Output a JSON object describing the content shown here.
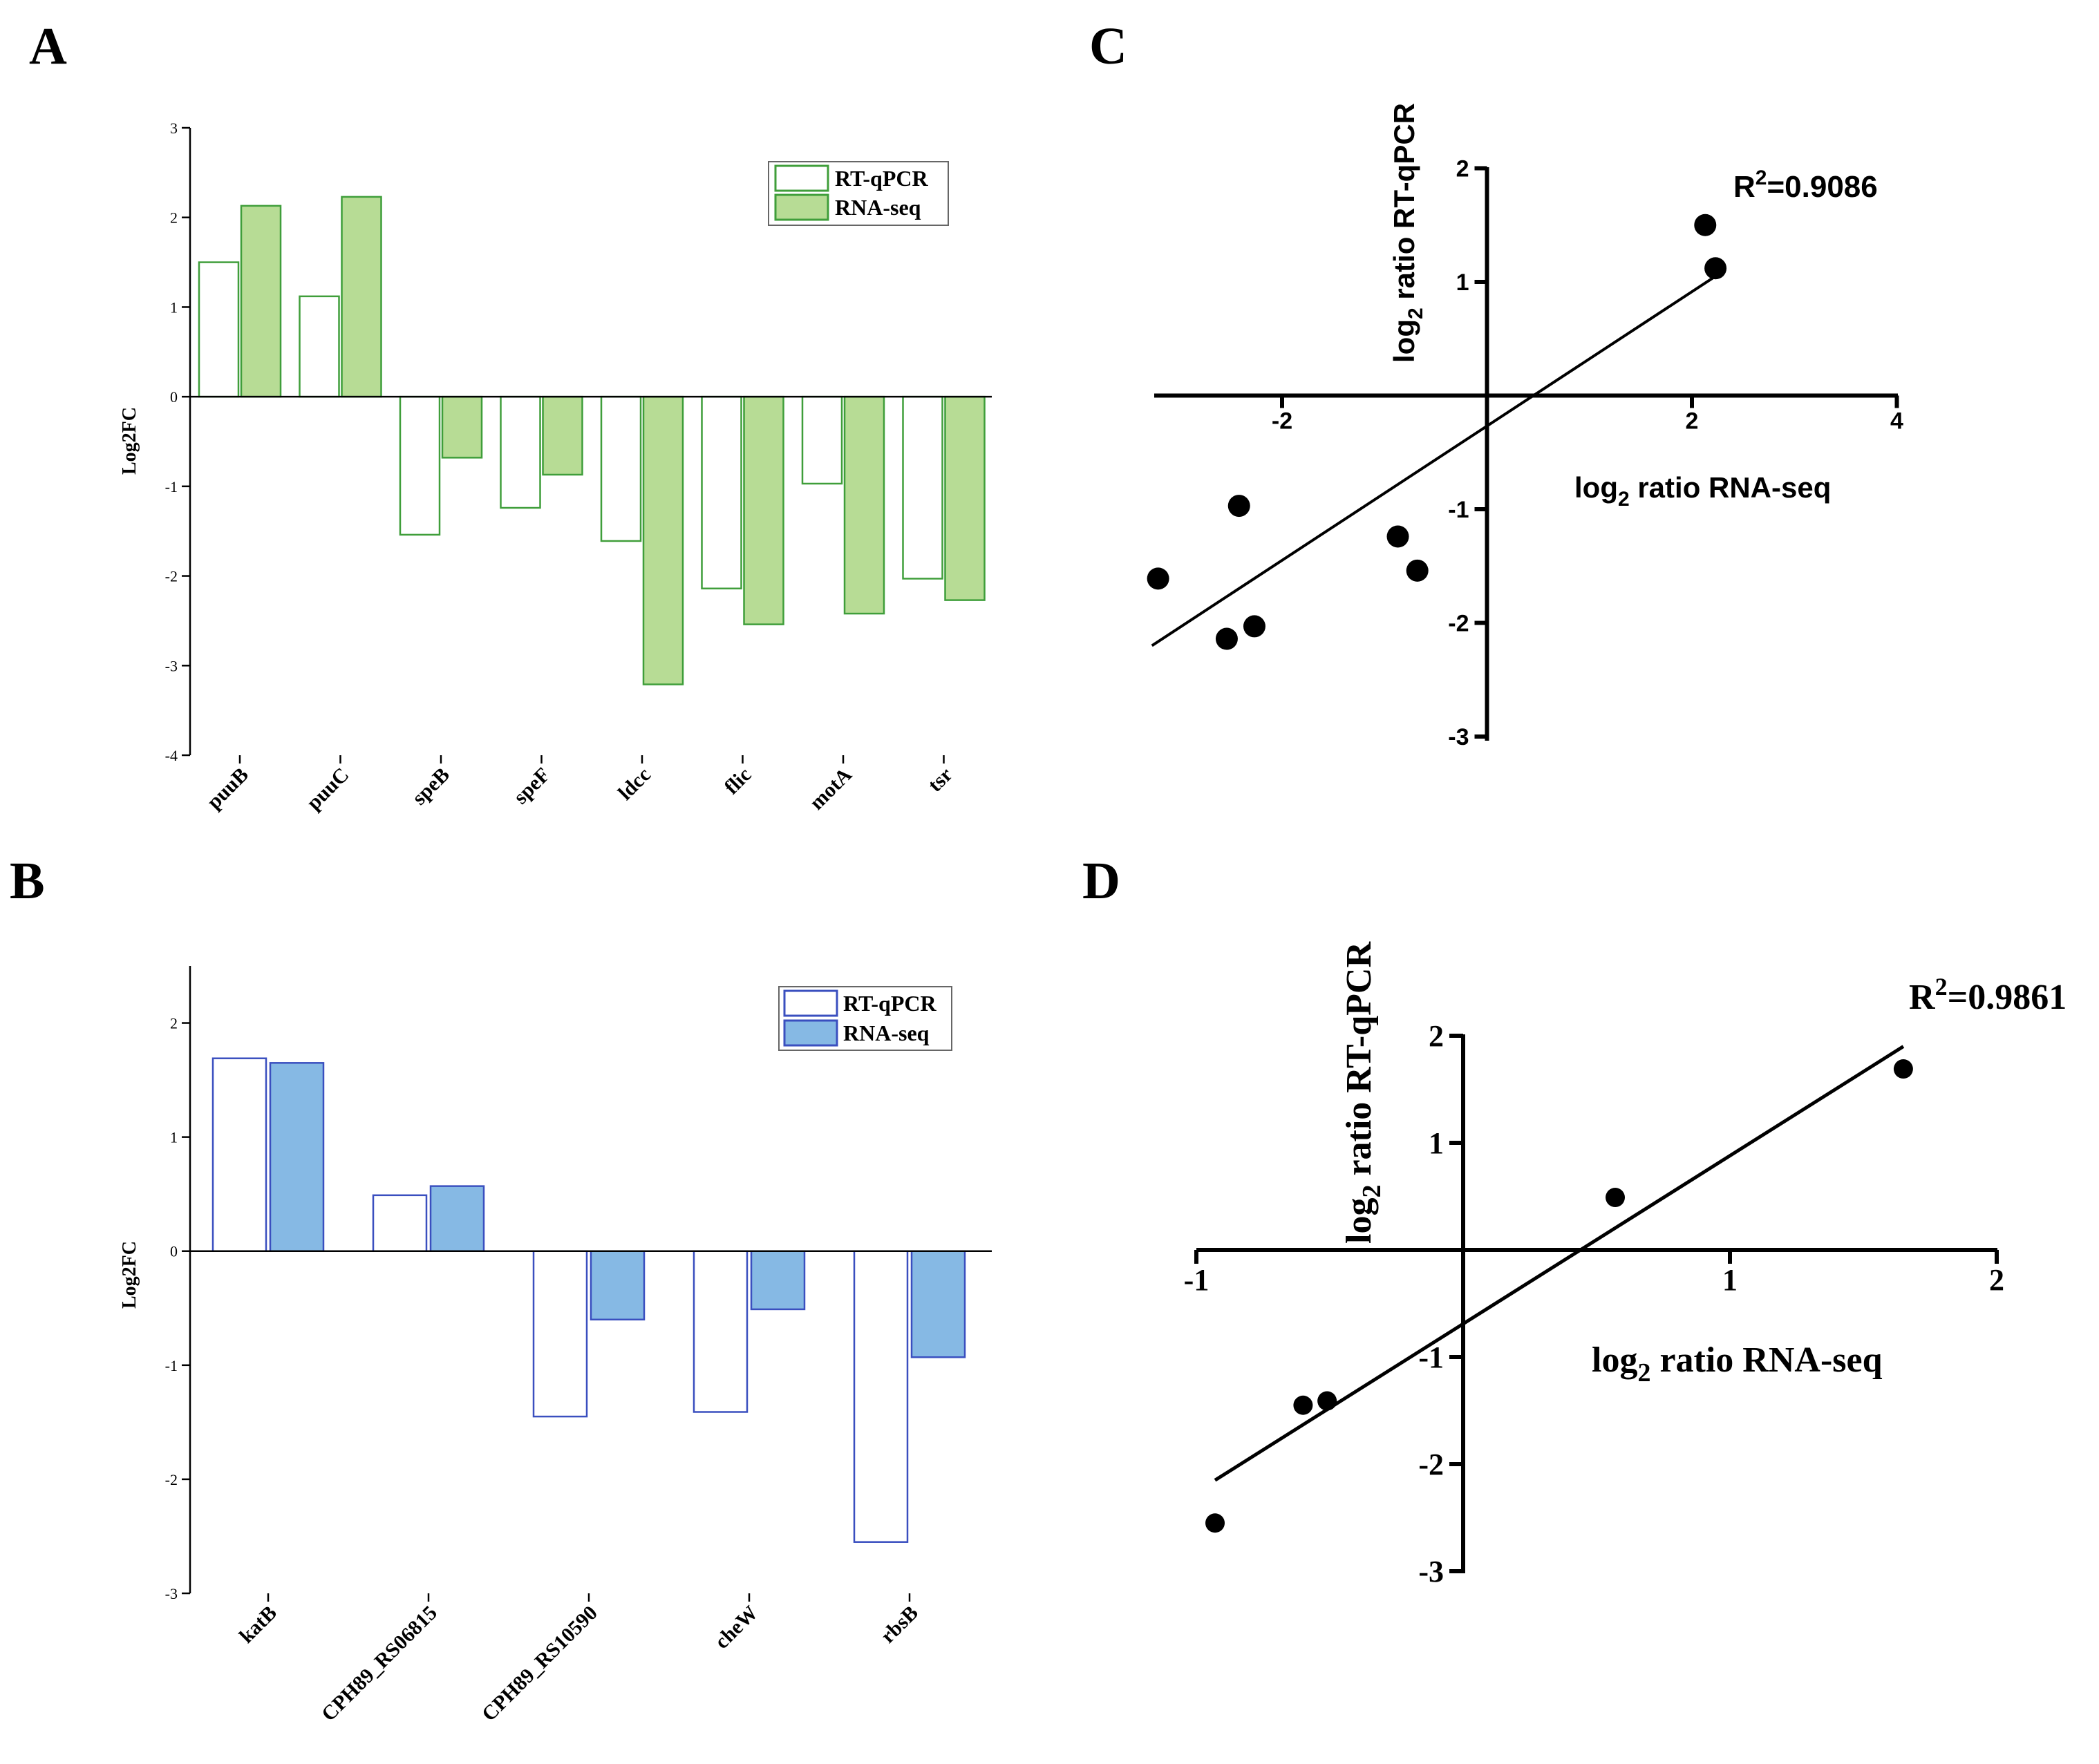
{
  "panels": {
    "A": "A",
    "B": "B",
    "C": "C",
    "D": "D"
  },
  "colors": {
    "green_stroke": "#3f9e3a",
    "green_fill": "#b7dc95",
    "blue_stroke": "#3a4fbf",
    "blue_fill": "#86b9e4",
    "axis": "#000000"
  },
  "chart_data": [
    {
      "id": "A",
      "type": "bar",
      "ylabel": "Log2FC",
      "ylim": [
        -4,
        3
      ],
      "yticks": [
        -4,
        -3,
        -2,
        -1,
        0,
        1,
        2,
        3
      ],
      "categories": [
        "puuB",
        "puuC",
        "speB",
        "speF",
        "ldcc",
        "flic",
        "motA",
        "tsr"
      ],
      "series": [
        {
          "name": "RT-qPCR",
          "values": [
            1.5,
            1.12,
            -1.54,
            -1.24,
            -1.61,
            -2.14,
            -0.97,
            -2.03
          ]
        },
        {
          "name": "RNA-seq",
          "values": [
            2.13,
            2.23,
            -0.68,
            -0.87,
            -3.21,
            -2.54,
            -2.42,
            -2.27
          ]
        }
      ],
      "legend": [
        "RT-qPCR",
        "RNA-seq"
      ],
      "legend_position": "top-right"
    },
    {
      "id": "B",
      "type": "bar",
      "ylabel": "Log2FC",
      "ylim": [
        -3,
        2.5
      ],
      "yticks": [
        -3,
        -2,
        -1,
        0,
        1,
        2
      ],
      "categories": [
        "katB",
        "CPH89_RS06815",
        "CPH89_RS10590",
        "cheW",
        "rbsB"
      ],
      "series": [
        {
          "name": "RT-qPCR",
          "values": [
            1.69,
            0.49,
            -1.45,
            -1.41,
            -2.55
          ]
        },
        {
          "name": "RNA-seq",
          "values": [
            1.65,
            0.57,
            -0.6,
            -0.51,
            -0.93
          ]
        }
      ],
      "legend": [
        "RT-qPCR",
        "RNA-seq"
      ],
      "legend_position": "top-right"
    },
    {
      "id": "C",
      "type": "scatter",
      "xlabel": "log2 ratio RNA-seq",
      "ylabel": "log2 ratio RT-qPCR",
      "xlim": [
        -3.27,
        4
      ],
      "ylim": [
        -3,
        2
      ],
      "xticks": [
        -2,
        2,
        4
      ],
      "yticks": [
        -3,
        -2,
        -1,
        1,
        2
      ],
      "points": [
        [
          2.13,
          1.5
        ],
        [
          2.23,
          1.12
        ],
        [
          -2.42,
          -0.97
        ],
        [
          -3.21,
          -1.61
        ],
        [
          -0.87,
          -1.24
        ],
        [
          -0.68,
          -1.54
        ],
        [
          -2.54,
          -2.14
        ],
        [
          -2.27,
          -2.03
        ]
      ],
      "fit": {
        "x": [
          -3.27,
          2.23
        ],
        "y": [
          -2.2,
          1.05
        ]
      },
      "annotation": "R2=0.9086"
    },
    {
      "id": "D",
      "type": "scatter",
      "xlabel": "log2 ratio RNA-seq",
      "ylabel": "log2 ratio RT-qPCR",
      "xlim": [
        -1,
        2
      ],
      "ylim": [
        -3,
        2
      ],
      "xticks": [
        -1,
        1,
        2
      ],
      "yticks": [
        -3,
        -2,
        -1,
        1,
        2
      ],
      "points": [
        [
          1.65,
          1.69
        ],
        [
          0.57,
          0.49
        ],
        [
          -0.6,
          -1.45
        ],
        [
          -0.51,
          -1.41
        ],
        [
          -0.93,
          -2.55
        ]
      ],
      "fit": {
        "x": [
          -0.93,
          1.65
        ],
        "y": [
          -2.15,
          1.9
        ]
      },
      "annotation": "R2=0.9861"
    }
  ]
}
